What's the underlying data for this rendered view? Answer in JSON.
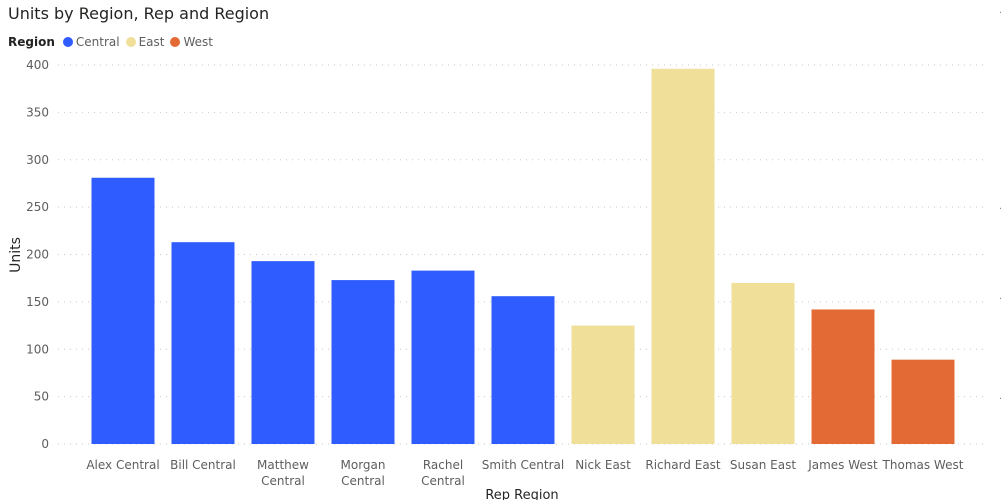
{
  "chart_data": {
    "type": "bar",
    "title": "Units by Region, Rep and Region",
    "legend": {
      "title": "Region",
      "placement": "top-left",
      "items": [
        {
          "name": "Central",
          "color": "#2F5CFF"
        },
        {
          "name": "East",
          "color": "#EFDF98"
        },
        {
          "name": "West",
          "color": "#E46A35"
        }
      ]
    },
    "xlabel": "Rep Region",
    "ylabel": "Units",
    "ylim": [
      0,
      400
    ],
    "yticks": [
      0,
      50,
      100,
      150,
      200,
      250,
      300,
      350,
      400
    ],
    "grid": true,
    "categories": [
      {
        "label": [
          "Alex Central"
        ],
        "region": "Central",
        "value": 281
      },
      {
        "label": [
          "Bill Central"
        ],
        "region": "Central",
        "value": 213
      },
      {
        "label": [
          "Matthew",
          "Central"
        ],
        "region": "Central",
        "value": 193
      },
      {
        "label": [
          "Morgan",
          "Central"
        ],
        "region": "Central",
        "value": 173
      },
      {
        "label": [
          "Rachel",
          "Central"
        ],
        "region": "Central",
        "value": 183
      },
      {
        "label": [
          "Smith Central"
        ],
        "region": "Central",
        "value": 156
      },
      {
        "label": [
          "Nick East"
        ],
        "region": "East",
        "value": 125
      },
      {
        "label": [
          "Richard East"
        ],
        "region": "East",
        "value": 396
      },
      {
        "label": [
          "Susan East"
        ],
        "region": "East",
        "value": 170
      },
      {
        "label": [
          "James West"
        ],
        "region": "West",
        "value": 142
      },
      {
        "label": [
          "Thomas West"
        ],
        "region": "West",
        "value": 89
      }
    ]
  }
}
